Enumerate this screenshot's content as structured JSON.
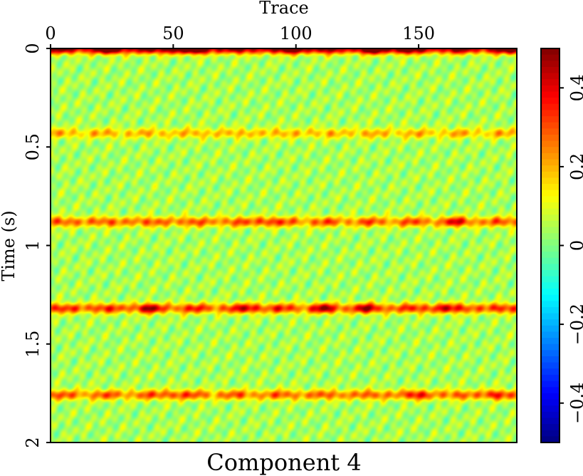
{
  "chart_data": {
    "type": "heatmap",
    "title": "Component 4",
    "xlabel": "Trace",
    "ylabel": "Time (s)",
    "x_axis_position": "top",
    "xlim": [
      0,
      190
    ],
    "ylim": [
      0,
      2
    ],
    "y_inverted": true,
    "x_ticks": [
      0,
      50,
      100,
      150
    ],
    "x_tick_labels": [
      "0",
      "50",
      "100",
      "150"
    ],
    "y_ticks": [
      0,
      0.5,
      1,
      1.5,
      2
    ],
    "y_tick_labels": [
      "0",
      "0.5",
      "1",
      "1.5",
      "2"
    ],
    "colorbar": {
      "colormap": "jet",
      "range": [
        -0.5,
        0.5
      ],
      "ticks": [
        -0.4,
        -0.2,
        0,
        0.2,
        0.4
      ],
      "tick_labels": [
        "−0.4",
        "−0.2",
        "0",
        "0.2",
        "0.4"
      ],
      "placement": "right"
    },
    "grid": false,
    "background_level": 0.0,
    "features": [
      {
        "label": "Surface energy at time 0",
        "time_s": 0.0,
        "amplitude": 0.5,
        "hotspot_traces": [
          25,
          50,
          60,
          100,
          132,
          143,
          190
        ]
      },
      {
        "label": "Horizontal reflection",
        "time_s": 0.43,
        "amplitude": 0.17,
        "hotspot_traces": []
      },
      {
        "label": "Horizontal reflection",
        "time_s": 0.88,
        "amplitude": 0.27,
        "hotspot_traces": [
          87,
          165
        ]
      },
      {
        "label": "Horizontal reflection",
        "time_s": 1.32,
        "amplitude": 0.32,
        "hotspot_traces": [
          40,
          82,
          111,
          128,
          160
        ]
      },
      {
        "label": "Horizontal reflection",
        "time_s": 1.76,
        "amplitude": 0.26,
        "hotspot_traces": [
          50,
          150,
          180
        ]
      }
    ]
  }
}
